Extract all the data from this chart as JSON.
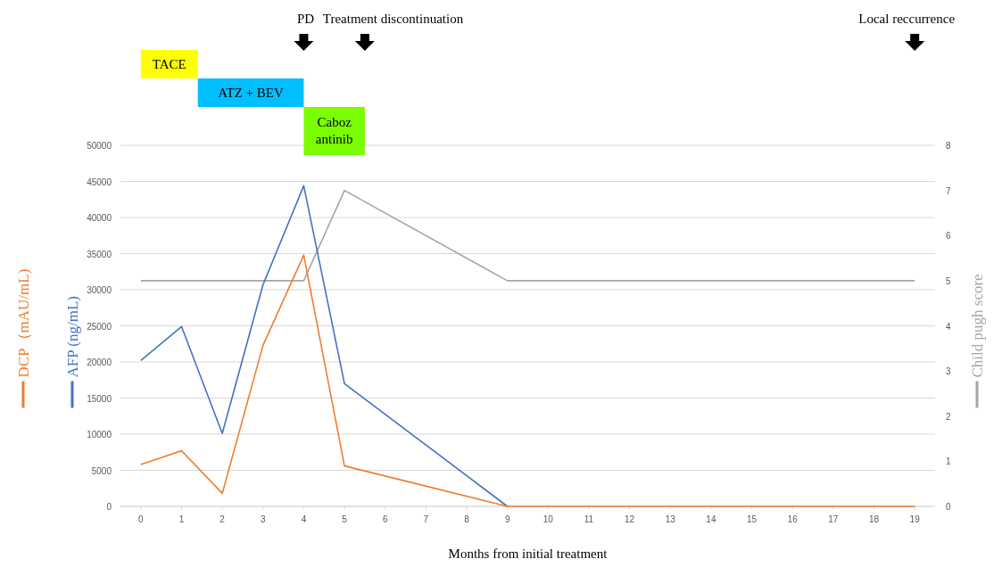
{
  "chart_data": {
    "type": "line",
    "xlabel": "Months from initial treatment",
    "x": [
      0,
      1,
      2,
      3,
      4,
      5,
      9,
      12,
      16,
      19
    ],
    "xlim": [
      -0.5,
      19.5
    ],
    "xticks": [
      0,
      1,
      2,
      3,
      4,
      5,
      6,
      7,
      8,
      9,
      10,
      11,
      12,
      13,
      14,
      15,
      16,
      17,
      18,
      19
    ],
    "ylim": [
      0,
      50000
    ],
    "yticks": [
      0,
      5000,
      10000,
      15000,
      20000,
      25000,
      30000,
      35000,
      40000,
      45000,
      50000
    ],
    "y2lim": [
      0,
      8
    ],
    "y2ticks": [
      0,
      1,
      2,
      3,
      4,
      5,
      6,
      7,
      8
    ],
    "series": [
      {
        "name": "DCP（mAU/mL)",
        "color": "#ed7d31",
        "values": [
          5800,
          7700,
          1800,
          22300,
          34800,
          5600,
          0,
          0,
          0,
          0
        ]
      },
      {
        "name": "AFP (ng/mL)",
        "color": "#4472c4",
        "values": [
          20200,
          24900,
          10100,
          30700,
          44400,
          17000,
          0,
          null,
          null,
          null
        ]
      },
      {
        "name": "Child pugh score",
        "color": "#a5a5a5",
        "axis": "y2",
        "values": [
          5,
          5,
          5,
          5,
          5,
          7,
          5,
          5,
          5,
          5
        ]
      }
    ],
    "grid": "y",
    "legend": "left",
    "marker": "none",
    "line_style": "solid",
    "annotations": [
      "PD",
      "Treatment discontinuation",
      "Local reccurrence",
      "TACE",
      "ATZ + BEV",
      "Caboz antinib"
    ]
  }
}
